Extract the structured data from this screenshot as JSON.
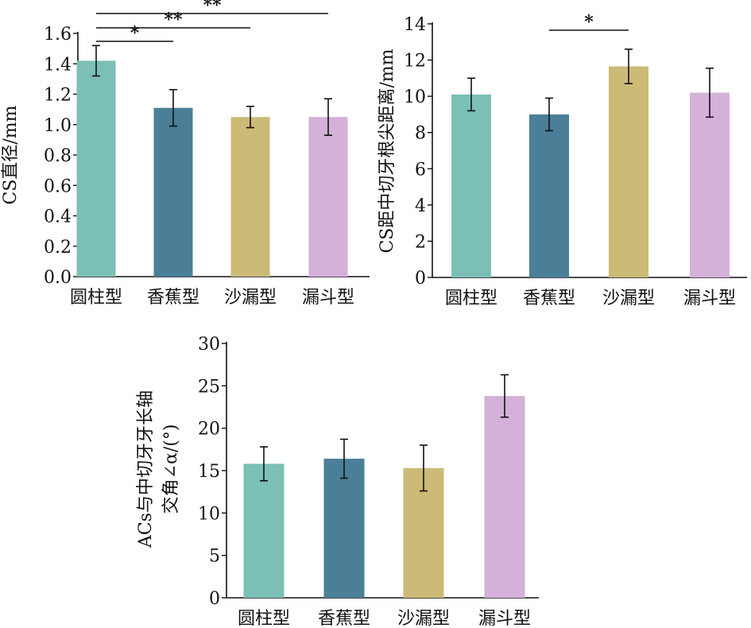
{
  "colors": {
    "圆柱型": "#7bbfb6",
    "香蕉型": "#4a7f97",
    "沙漏型": "#ccba77",
    "漏斗型": "#d3b1d8",
    "axis": "#111111",
    "errorbar": "#111111"
  },
  "chart_data": [
    {
      "type": "bar",
      "categories": [
        "圆柱型",
        "香蕉型",
        "沙漏型",
        "漏斗型"
      ],
      "values": [
        1.42,
        1.11,
        1.05,
        1.05
      ],
      "errors": [
        0.1,
        0.12,
        0.07,
        0.12
      ],
      "ylabel": "CS直径/mm",
      "xlabel": "",
      "ylim": [
        0,
        1.6
      ],
      "yticks": [
        "0.0",
        "0.2",
        "0.4",
        "0.6",
        "0.8",
        "1.0",
        "1.2",
        "1.4",
        "1.6"
      ],
      "grid": false,
      "significance": [
        {
          "from": "圆柱型",
          "to": "香蕉型",
          "label": "*"
        },
        {
          "from": "圆柱型",
          "to": "沙漏型",
          "label": "**"
        },
        {
          "from": "圆柱型",
          "to": "漏斗型",
          "label": "**"
        }
      ]
    },
    {
      "type": "bar",
      "categories": [
        "圆柱型",
        "香蕉型",
        "沙漏型",
        "漏斗型"
      ],
      "values": [
        10.1,
        9.0,
        11.65,
        10.2
      ],
      "errors": [
        0.9,
        0.9,
        0.95,
        1.35
      ],
      "ylabel": "CS距中切牙根尖距离/mm",
      "xlabel": "",
      "ylim": [
        0,
        14
      ],
      "yticks": [
        "0",
        "2",
        "4",
        "6",
        "8",
        "10",
        "12",
        "14"
      ],
      "grid": false,
      "significance": [
        {
          "from": "香蕉型",
          "to": "沙漏型",
          "label": "*"
        }
      ]
    },
    {
      "type": "bar",
      "categories": [
        "圆柱型",
        "香蕉型",
        "沙漏型",
        "漏斗型"
      ],
      "values": [
        15.8,
        16.4,
        15.3,
        23.8
      ],
      "errors": [
        2.0,
        2.3,
        2.7,
        2.5
      ],
      "ylabel": [
        "ACs与中切牙牙长轴",
        "交角∠α/(°)"
      ],
      "xlabel": "",
      "ylim": [
        0,
        30
      ],
      "yticks": [
        "0",
        "5",
        "10",
        "15",
        "20",
        "25",
        "30"
      ],
      "grid": false,
      "significance": []
    }
  ]
}
